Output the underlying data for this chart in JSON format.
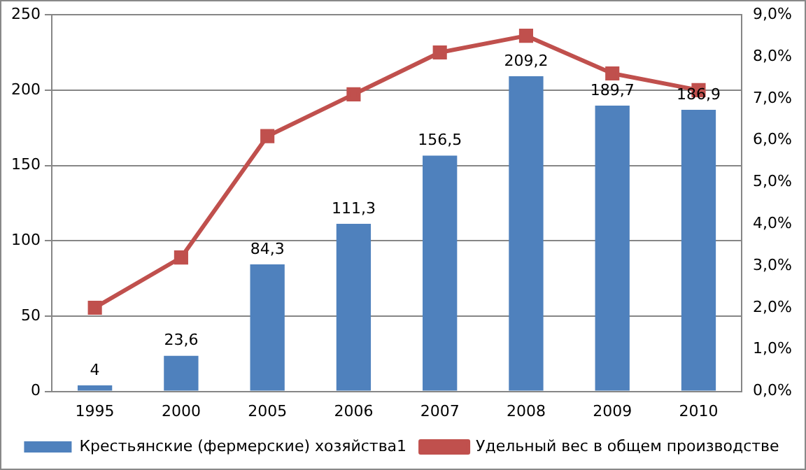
{
  "chart_data": {
    "type": "bar",
    "categories": [
      "1995",
      "2000",
      "2005",
      "2006",
      "2007",
      "2008",
      "2009",
      "2010"
    ],
    "series": [
      {
        "name": "Крестьянские (фермерские) хозяйства1",
        "color": "#4f81bd",
        "values": [
          4,
          23.6,
          84.3,
          111.3,
          156.5,
          209.2,
          189.7,
          186.9
        ],
        "value_labels": [
          "4",
          "23,6",
          "84,3",
          "111,3",
          "156,5",
          "209,2",
          "189,7",
          "186,9"
        ]
      },
      {
        "name": "Удельный вес в общем производстве",
        "type": "line",
        "axis": "y2",
        "color": "#c0504d",
        "marker": "square",
        "values": [
          2.0,
          3.2,
          6.1,
          7.1,
          8.1,
          8.5,
          7.6,
          7.2
        ]
      }
    ],
    "ylim": [
      0,
      250
    ],
    "yticks": [
      0,
      50,
      100,
      150,
      200,
      250
    ],
    "y2lim": [
      0,
      9
    ],
    "y2ticks": [
      {
        "value": 0,
        "label": "0,0%"
      },
      {
        "value": 1,
        "label": "1,0%"
      },
      {
        "value": 2,
        "label": "2,0%"
      },
      {
        "value": 3,
        "label": "3,0%"
      },
      {
        "value": 4,
        "label": "4,0%"
      },
      {
        "value": 5,
        "label": "5,0%"
      },
      {
        "value": 6,
        "label": "6,0%"
      },
      {
        "value": 7,
        "label": "7,0%"
      },
      {
        "value": 8,
        "label": "8,0%"
      },
      {
        "value": 9,
        "label": "9,0%"
      }
    ],
    "grid": "y",
    "legend": "bottom"
  }
}
